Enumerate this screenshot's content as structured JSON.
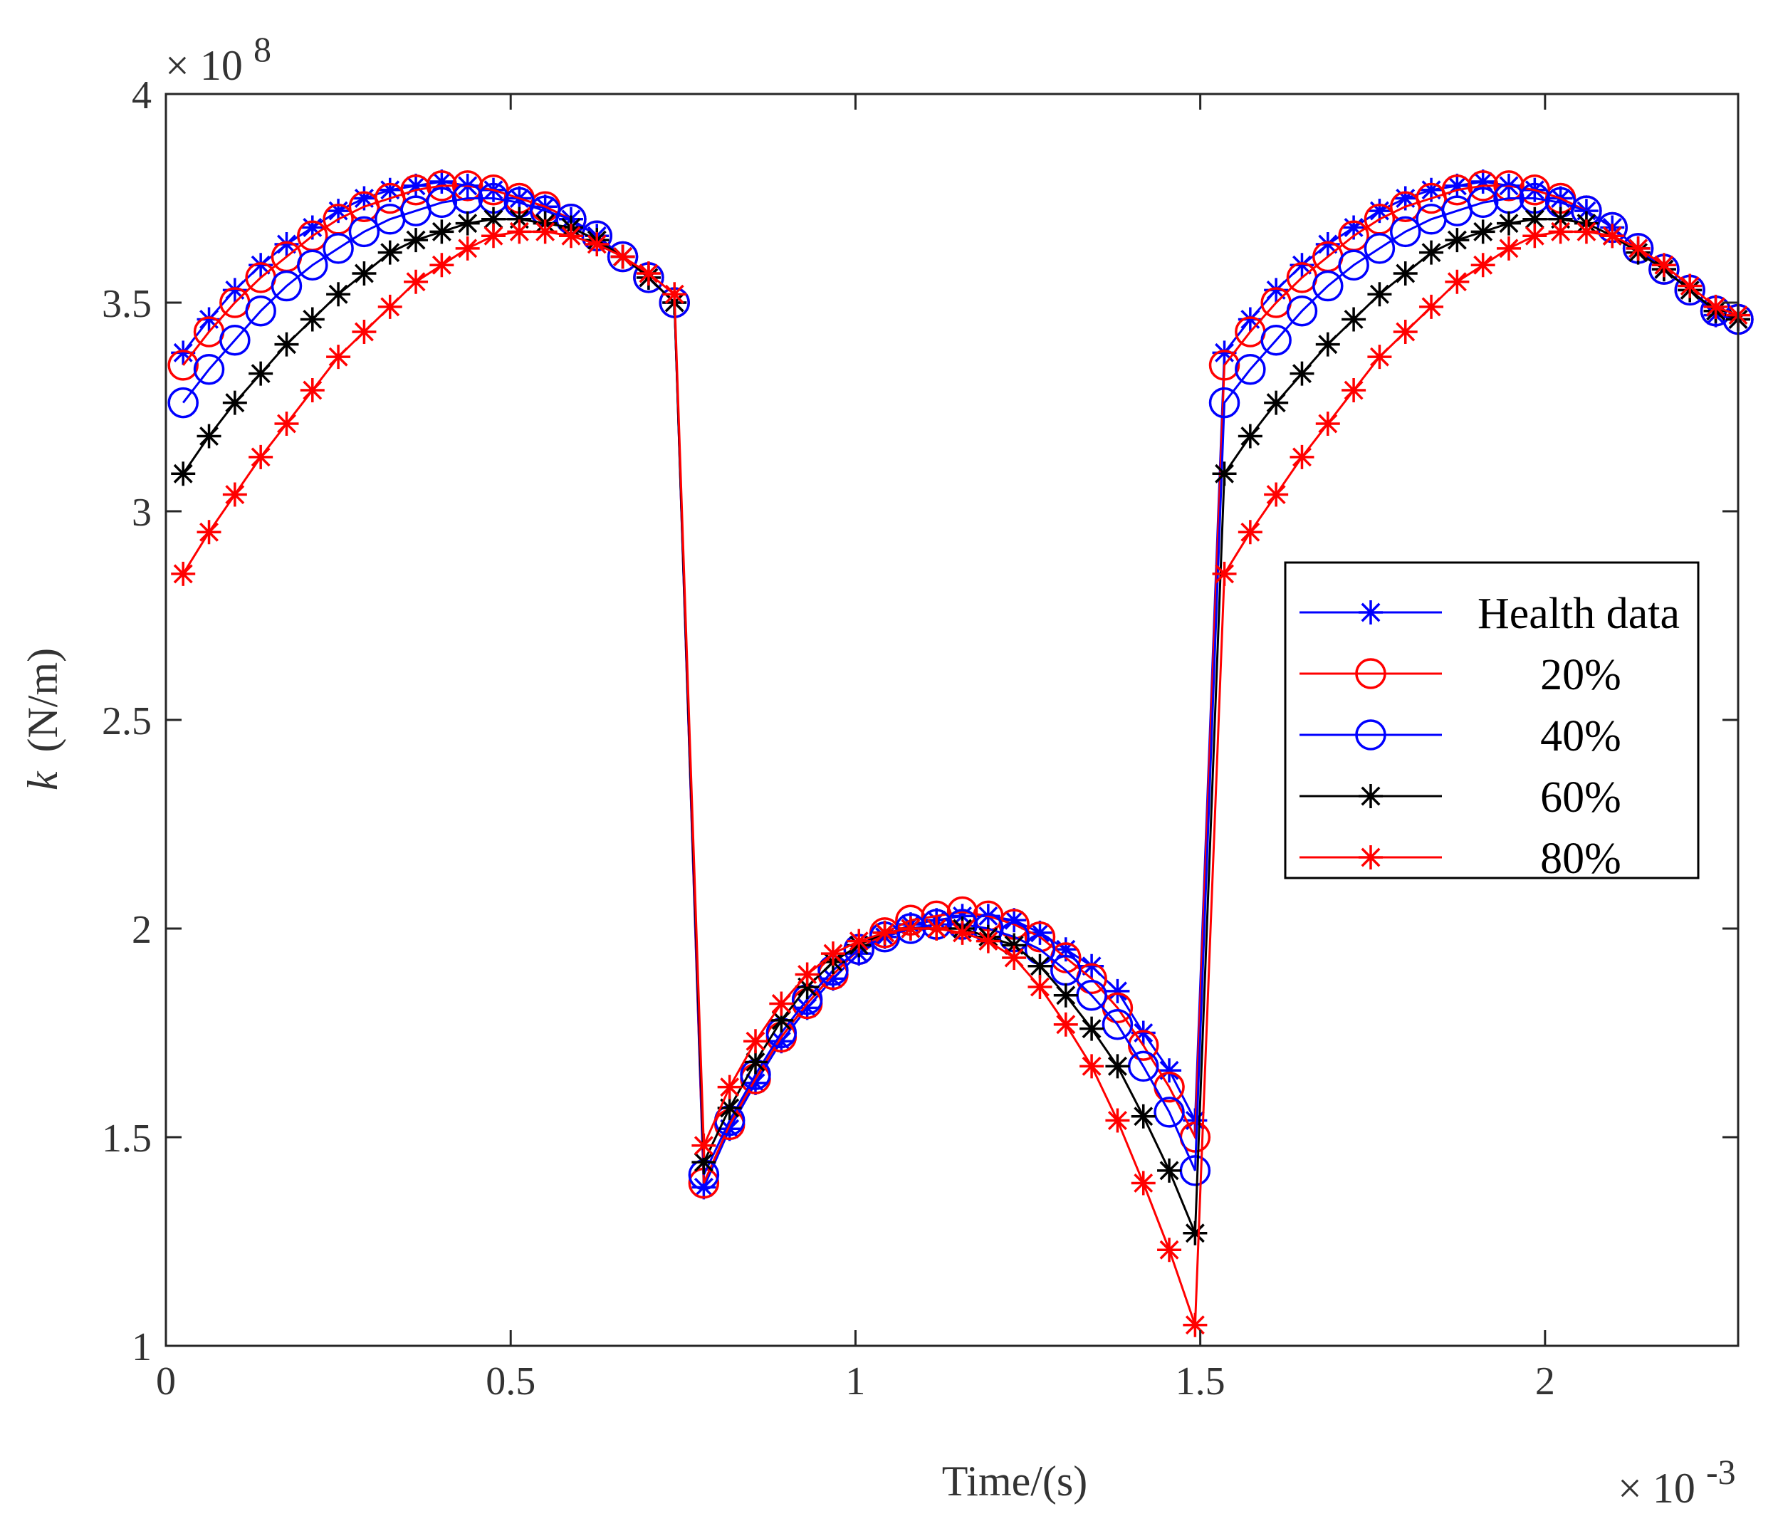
{
  "chart_data": {
    "type": "line",
    "xlabel": "Time/(s)",
    "ylabel_var": "k",
    "ylabel_unit": "(N/m)",
    "x_multiplier": "× 10",
    "x_exponent": "-3",
    "y_multiplier": "× 10",
    "y_exponent": "8",
    "xlim": [
      0,
      2.28
    ],
    "ylim": [
      1,
      4
    ],
    "xticks": [
      0,
      0.5,
      1,
      1.5,
      2
    ],
    "xtick_labels": [
      "0",
      "0.5",
      "1",
      "1.5",
      "2"
    ],
    "yticks": [
      1,
      1.5,
      2,
      2.5,
      3,
      3.5,
      4
    ],
    "ytick_labels": [
      "1",
      "1.5",
      "2",
      "2.5",
      "3",
      "3.5",
      "4"
    ],
    "legend_position": "right-middle",
    "x": [
      0.025,
      0.0625,
      0.1,
      0.1375,
      0.175,
      0.2125,
      0.25,
      0.2875,
      0.325,
      0.3625,
      0.4,
      0.4375,
      0.475,
      0.5125,
      0.55,
      0.5875,
      0.625,
      0.6625,
      0.7,
      0.7375,
      0.78,
      0.8175,
      0.855,
      0.8925,
      0.93,
      0.9675,
      1.005,
      1.0425,
      1.08,
      1.1175,
      1.155,
      1.1925,
      1.23,
      1.2675,
      1.305,
      1.3425,
      1.38,
      1.4175,
      1.455,
      1.4925,
      1.535,
      1.5725,
      1.61,
      1.6475,
      1.685,
      1.7225,
      1.76,
      1.7975,
      1.835,
      1.8725,
      1.91,
      1.9475,
      1.985,
      2.0225,
      2.06,
      2.0975,
      2.135,
      2.1725,
      2.21,
      2.2475,
      2.28
    ],
    "series": [
      {
        "name": "Health data",
        "color": "#0000ff",
        "marker": "star",
        "values": [
          3.38,
          3.46,
          3.53,
          3.59,
          3.64,
          3.68,
          3.72,
          3.75,
          3.77,
          3.78,
          3.79,
          3.78,
          3.77,
          3.75,
          3.73,
          3.7,
          3.66,
          3.61,
          3.56,
          3.5,
          1.38,
          1.52,
          1.63,
          1.73,
          1.81,
          1.88,
          1.94,
          1.98,
          2.01,
          2.02,
          2.03,
          2.03,
          2.02,
          1.99,
          1.95,
          1.91,
          1.85,
          1.75,
          1.66,
          1.54,
          3.38,
          3.46,
          3.53,
          3.59,
          3.64,
          3.68,
          3.72,
          3.75,
          3.77,
          3.78,
          3.79,
          3.78,
          3.77,
          3.75,
          3.72,
          3.68,
          3.63,
          3.58,
          3.53,
          3.47,
          3.46
        ]
      },
      {
        "name": "20%",
        "color": "#ff0000",
        "marker": "circle",
        "values": [
          3.35,
          3.43,
          3.5,
          3.56,
          3.61,
          3.66,
          3.7,
          3.73,
          3.75,
          3.77,
          3.78,
          3.78,
          3.77,
          3.75,
          3.73,
          3.7,
          3.66,
          3.61,
          3.56,
          3.5,
          1.39,
          1.53,
          1.64,
          1.74,
          1.82,
          1.89,
          1.95,
          1.99,
          2.02,
          2.03,
          2.04,
          2.03,
          2.01,
          1.98,
          1.93,
          1.88,
          1.81,
          1.72,
          1.62,
          1.5,
          3.35,
          3.43,
          3.5,
          3.56,
          3.61,
          3.66,
          3.7,
          3.73,
          3.75,
          3.77,
          3.78,
          3.78,
          3.77,
          3.75,
          3.72,
          3.68,
          3.63,
          3.58,
          3.53,
          3.48,
          3.46
        ]
      },
      {
        "name": "40%",
        "color": "#0000ff",
        "marker": "circle",
        "values": [
          3.26,
          3.34,
          3.41,
          3.48,
          3.54,
          3.59,
          3.63,
          3.67,
          3.7,
          3.72,
          3.74,
          3.75,
          3.75,
          3.74,
          3.72,
          3.7,
          3.66,
          3.61,
          3.56,
          3.5,
          1.41,
          1.54,
          1.65,
          1.75,
          1.83,
          1.9,
          1.95,
          1.98,
          2.0,
          2.01,
          2.01,
          2.0,
          1.98,
          1.95,
          1.9,
          1.84,
          1.77,
          1.67,
          1.56,
          1.42,
          3.26,
          3.34,
          3.41,
          3.48,
          3.54,
          3.59,
          3.63,
          3.67,
          3.7,
          3.72,
          3.74,
          3.75,
          3.75,
          3.74,
          3.72,
          3.68,
          3.63,
          3.58,
          3.53,
          3.48,
          3.46
        ]
      },
      {
        "name": "60%",
        "color": "#000000",
        "marker": "star",
        "values": [
          3.09,
          3.18,
          3.26,
          3.33,
          3.4,
          3.46,
          3.52,
          3.57,
          3.62,
          3.65,
          3.67,
          3.69,
          3.7,
          3.7,
          3.69,
          3.68,
          3.65,
          3.61,
          3.56,
          3.5,
          1.44,
          1.57,
          1.68,
          1.78,
          1.86,
          1.92,
          1.96,
          1.99,
          2.0,
          2.0,
          2.0,
          1.98,
          1.96,
          1.91,
          1.84,
          1.76,
          1.67,
          1.55,
          1.42,
          1.27,
          3.09,
          3.18,
          3.26,
          3.33,
          3.4,
          3.46,
          3.52,
          3.57,
          3.62,
          3.65,
          3.67,
          3.69,
          3.7,
          3.7,
          3.69,
          3.66,
          3.62,
          3.58,
          3.53,
          3.48,
          3.46
        ]
      },
      {
        "name": "80%",
        "color": "#ff0000",
        "marker": "star",
        "values": [
          2.85,
          2.95,
          3.04,
          3.13,
          3.21,
          3.29,
          3.37,
          3.43,
          3.49,
          3.55,
          3.59,
          3.63,
          3.66,
          3.67,
          3.67,
          3.66,
          3.64,
          3.61,
          3.57,
          3.52,
          1.48,
          1.62,
          1.73,
          1.82,
          1.89,
          1.94,
          1.97,
          1.99,
          2.0,
          2.0,
          1.99,
          1.97,
          1.93,
          1.86,
          1.77,
          1.67,
          1.54,
          1.39,
          1.23,
          1.05,
          2.85,
          2.95,
          3.04,
          3.13,
          3.21,
          3.29,
          3.37,
          3.43,
          3.49,
          3.55,
          3.59,
          3.63,
          3.66,
          3.67,
          3.67,
          3.66,
          3.63,
          3.59,
          3.54,
          3.49,
          3.47
        ]
      }
    ]
  }
}
